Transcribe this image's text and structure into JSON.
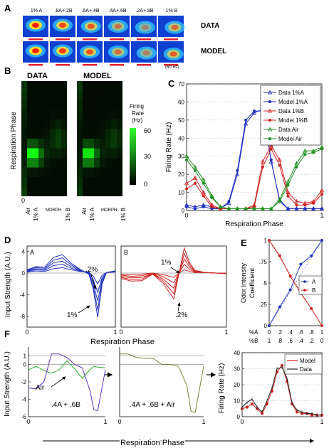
{
  "panel_labels": {
    "a": "A",
    "b": "B",
    "c": "C",
    "d": "D",
    "e": "E",
    "f": "F"
  },
  "panelA": {
    "column_labels": [
      "1% A",
      ".8A+.2B",
      ".6A+.4B",
      ".4A+.6B",
      ".2A+.8B",
      "1% B"
    ],
    "row_labels": [
      "DATA",
      "MODEL"
    ],
    "scale_note": "(60 Hz)",
    "colors": {
      "background": "#1040d0",
      "hot": "#ff2000",
      "bar": "#e02030"
    }
  },
  "panelB": {
    "titles": [
      "DATA",
      "MODEL"
    ],
    "ylabel": "Respiration Phase",
    "yticks": [
      "1",
      "0"
    ],
    "xticks": [
      "Air",
      "1% A",
      "1% B"
    ],
    "xlabel_mid": "MORPH",
    "colorbar_title": [
      "Firing",
      "Rate",
      "(Hz)"
    ],
    "colorbar_ticks": [
      "60",
      "30",
      "0"
    ]
  },
  "chart_data": [
    {
      "id": "C",
      "type": "line",
      "xlabel": "Respiration Phase",
      "ylabel": "Firing Rate (Hz)",
      "xlim": [
        0,
        1
      ],
      "ylim": [
        0,
        70
      ],
      "yticks": [
        0,
        10,
        20,
        30,
        40,
        50,
        60,
        70
      ],
      "xticks": [
        0,
        1
      ],
      "grid": "y-dotted",
      "legend": "top-right",
      "x": [
        0,
        0.0625,
        0.125,
        0.1875,
        0.25,
        0.3125,
        0.375,
        0.4375,
        0.5,
        0.5625,
        0.625,
        0.6875,
        0.75,
        0.8125,
        0.875,
        0.9375,
        1
      ],
      "series": [
        {
          "name": "Data 1%A",
          "color": "#2030c0",
          "marker": "triangle",
          "values": [
            3,
            2,
            3,
            2,
            1,
            4,
            20,
            48,
            54,
            56,
            27,
            6,
            1,
            1,
            1,
            1,
            1
          ]
        },
        {
          "name": "Model 1%A",
          "color": "#2030c0",
          "marker": "circle",
          "values": [
            2,
            1,
            2,
            1,
            1,
            5,
            22,
            50,
            55,
            55,
            28,
            5,
            1,
            1,
            1,
            1,
            1
          ]
        },
        {
          "name": "Data 1%B",
          "color": "#d02020",
          "marker": "triangle",
          "values": [
            15,
            18,
            10,
            3,
            1,
            1,
            1,
            1,
            3,
            27,
            36,
            28,
            10,
            5,
            4,
            5,
            11
          ]
        },
        {
          "name": "Model 1%B",
          "color": "#d02020",
          "marker": "circle",
          "values": [
            12,
            15,
            8,
            2,
            1,
            1,
            1,
            1,
            2,
            24,
            34,
            25,
            8,
            3,
            3,
            4,
            9
          ]
        },
        {
          "name": "Data Air",
          "color": "#209020",
          "marker": "triangle",
          "values": [
            30,
            24,
            17,
            8,
            2,
            1,
            1,
            1,
            1,
            1,
            1,
            6,
            16,
            26,
            33,
            33,
            35
          ]
        },
        {
          "name": "Model Air",
          "color": "#209020",
          "marker": "circle",
          "values": [
            28,
            22,
            15,
            7,
            2,
            1,
            1,
            1,
            1,
            1,
            1,
            5,
            14,
            24,
            31,
            32,
            34
          ]
        }
      ]
    },
    {
      "id": "D-A",
      "type": "line",
      "inset_label": "A",
      "ylabel": "Input Strength (A.U.)",
      "xlabel": "Respiration Phase",
      "xlim": [
        0,
        1
      ],
      "ylim": [
        -10,
        5
      ],
      "yticks": [
        4,
        0,
        -4,
        -8
      ],
      "xticks": [
        0,
        1
      ],
      "annotations": [
        ".2%",
        "1%"
      ],
      "color": "#2030c0",
      "x": [
        0,
        0.1,
        0.2,
        0.3,
        0.4,
        0.5,
        0.6,
        0.7,
        0.75,
        0.8,
        0.85,
        0.9,
        1
      ],
      "series_values": [
        [
          0.2,
          0.4,
          0.3,
          0.8,
          1.0,
          0.6,
          0.3,
          0.2,
          -0.6,
          -2.0,
          -0.4,
          0.1,
          0.2
        ],
        [
          0.3,
          0.6,
          0.5,
          1.4,
          1.6,
          0.9,
          0.4,
          0.1,
          -1.2,
          -3.6,
          -0.8,
          0.1,
          0.3
        ],
        [
          0.4,
          0.8,
          0.7,
          1.9,
          2.2,
          1.2,
          0.5,
          0.0,
          -1.8,
          -5.2,
          -1.2,
          0.1,
          0.3
        ],
        [
          0.5,
          1.0,
          0.9,
          2.4,
          2.8,
          1.5,
          0.6,
          -0.1,
          -2.4,
          -6.8,
          -1.6,
          0.1,
          0.4
        ],
        [
          0.6,
          1.2,
          1.1,
          2.9,
          3.4,
          1.8,
          0.7,
          -0.2,
          -3.0,
          -8.2,
          -2.0,
          0.1,
          0.4
        ]
      ]
    },
    {
      "id": "D-B",
      "type": "line",
      "inset_label": "B",
      "xlim": [
        0,
        1
      ],
      "ylim": [
        -10,
        5
      ],
      "xticks": [
        0,
        1
      ],
      "annotations": [
        "1%",
        ".2%"
      ],
      "color": "#d02020",
      "x": [
        0,
        0.1,
        0.2,
        0.3,
        0.4,
        0.5,
        0.55,
        0.6,
        0.65,
        0.7,
        0.8,
        0.9,
        1
      ],
      "series_values": [
        [
          -0.2,
          -0.3,
          -0.2,
          0.0,
          -0.3,
          -0.8,
          0.0,
          0.6,
          0.3,
          0.1,
          0.1,
          0.0,
          0.0
        ],
        [
          -0.4,
          -0.6,
          -0.5,
          0.0,
          -0.7,
          -1.8,
          0.0,
          1.6,
          0.7,
          0.2,
          0.1,
          0.0,
          0.0
        ],
        [
          -0.6,
          -0.9,
          -0.8,
          -0.1,
          -1.1,
          -2.8,
          0.0,
          2.6,
          1.1,
          0.3,
          0.1,
          0.0,
          -0.1
        ],
        [
          -0.8,
          -1.2,
          -1.1,
          -0.1,
          -1.5,
          -3.8,
          0.0,
          3.6,
          1.5,
          0.4,
          0.1,
          0.0,
          -0.1
        ],
        [
          -1.0,
          -1.5,
          -1.4,
          -0.2,
          -1.9,
          -4.8,
          0.0,
          4.6,
          1.9,
          0.5,
          0.1,
          0.0,
          -0.1
        ]
      ]
    },
    {
      "id": "E",
      "type": "line",
      "ylabel": "Odor Intensity Coefficient",
      "xlim": [
        0,
        1
      ],
      "ylim": [
        0,
        1
      ],
      "yticks": [
        0,
        0.25,
        0.5,
        0.75,
        1
      ],
      "ytick_labels": [
        "0",
        ".25",
        ".5",
        ".75",
        "1"
      ],
      "xtick_rows": [
        {
          "label": "%A",
          "ticks": [
            "0",
            ".2",
            ".4",
            ".6",
            ".8",
            "1"
          ]
        },
        {
          "label": "%B",
          "ticks": [
            "1",
            ".8",
            ".6",
            ".4",
            ".2",
            "0"
          ]
        }
      ],
      "legend": "center-right",
      "x": [
        0,
        0.2,
        0.4,
        0.6,
        0.8,
        1
      ],
      "series": [
        {
          "name": "A",
          "color": "#2030c0",
          "values": [
            0,
            0.22,
            0.42,
            0.72,
            0.82,
            1
          ]
        },
        {
          "name": "B",
          "color": "#d02020",
          "values": [
            1,
            0.82,
            0.58,
            0.38,
            0.2,
            0
          ]
        }
      ]
    },
    {
      "id": "F1",
      "type": "line",
      "ylabel": "Input Strength (A.U.)",
      "xlim": [
        0,
        1
      ],
      "ylim": [
        -6,
        2
      ],
      "yticks": [
        1,
        0,
        -2,
        -4,
        -6
      ],
      "xticks": [
        0,
        1
      ],
      "annotations": [
        "Air",
        ".4A + .6B"
      ],
      "x": [
        0,
        0.1,
        0.2,
        0.3,
        0.4,
        0.5,
        0.6,
        0.7,
        0.8,
        0.85,
        0.9,
        1
      ],
      "series": [
        {
          "color": "#20b020",
          "values": [
            -0.6,
            -0.2,
            -0.7,
            -1.0,
            -0.6,
            0.4,
            -0.5,
            -1.6,
            -0.6,
            -0.2,
            -0.3,
            -0.4
          ]
        },
        {
          "color": "#6030c0",
          "values": [
            -2.7,
            -2.8,
            -2.0,
            1.2,
            1.2,
            0.8,
            0.0,
            -0.4,
            -3.0,
            -5.2,
            -5.3,
            -0.6
          ]
        }
      ]
    },
    {
      "id": "F2",
      "type": "line",
      "xlim": [
        0,
        1
      ],
      "ylim": [
        -6,
        2
      ],
      "xticks": [
        0,
        1
      ],
      "annotations": [
        ".4A + .6B + Air"
      ],
      "x": [
        0,
        0.1,
        0.2,
        0.3,
        0.4,
        0.5,
        0.6,
        0.7,
        0.8,
        0.85,
        0.9,
        1
      ],
      "series": [
        {
          "color": "#808040",
          "values": [
            1.2,
            1.2,
            0.8,
            0.7,
            0.7,
            0.0,
            0.0,
            -0.2,
            -2.4,
            -5.4,
            -5.5,
            -0.2
          ]
        }
      ]
    },
    {
      "id": "F3",
      "type": "line",
      "ylabel": "Firing Rate (Hz)",
      "xlim": [
        0,
        1
      ],
      "ylim": [
        0,
        40
      ],
      "yticks": [
        0,
        10,
        20,
        30,
        40
      ],
      "xticks": [
        0,
        1
      ],
      "legend": "top-right",
      "x": [
        0,
        0.0625,
        0.125,
        0.1875,
        0.25,
        0.3125,
        0.375,
        0.4375,
        0.5,
        0.5625,
        0.625,
        0.6875,
        0.75,
        0.8125,
        0.875,
        0.9375,
        1
      ],
      "series": [
        {
          "name": "Model",
          "color": "#d02020",
          "values": [
            5,
            6,
            8,
            5,
            2,
            8,
            16,
            28,
            32,
            22,
            8,
            3,
            2,
            2,
            1,
            1,
            1
          ]
        },
        {
          "name": "Data",
          "color": "#202020",
          "values": [
            6,
            9,
            11,
            6,
            3,
            10,
            18,
            30,
            31,
            24,
            9,
            4,
            3,
            2,
            2,
            1,
            1
          ]
        }
      ]
    }
  ],
  "bottom_axis_label": "Respiration Phase"
}
